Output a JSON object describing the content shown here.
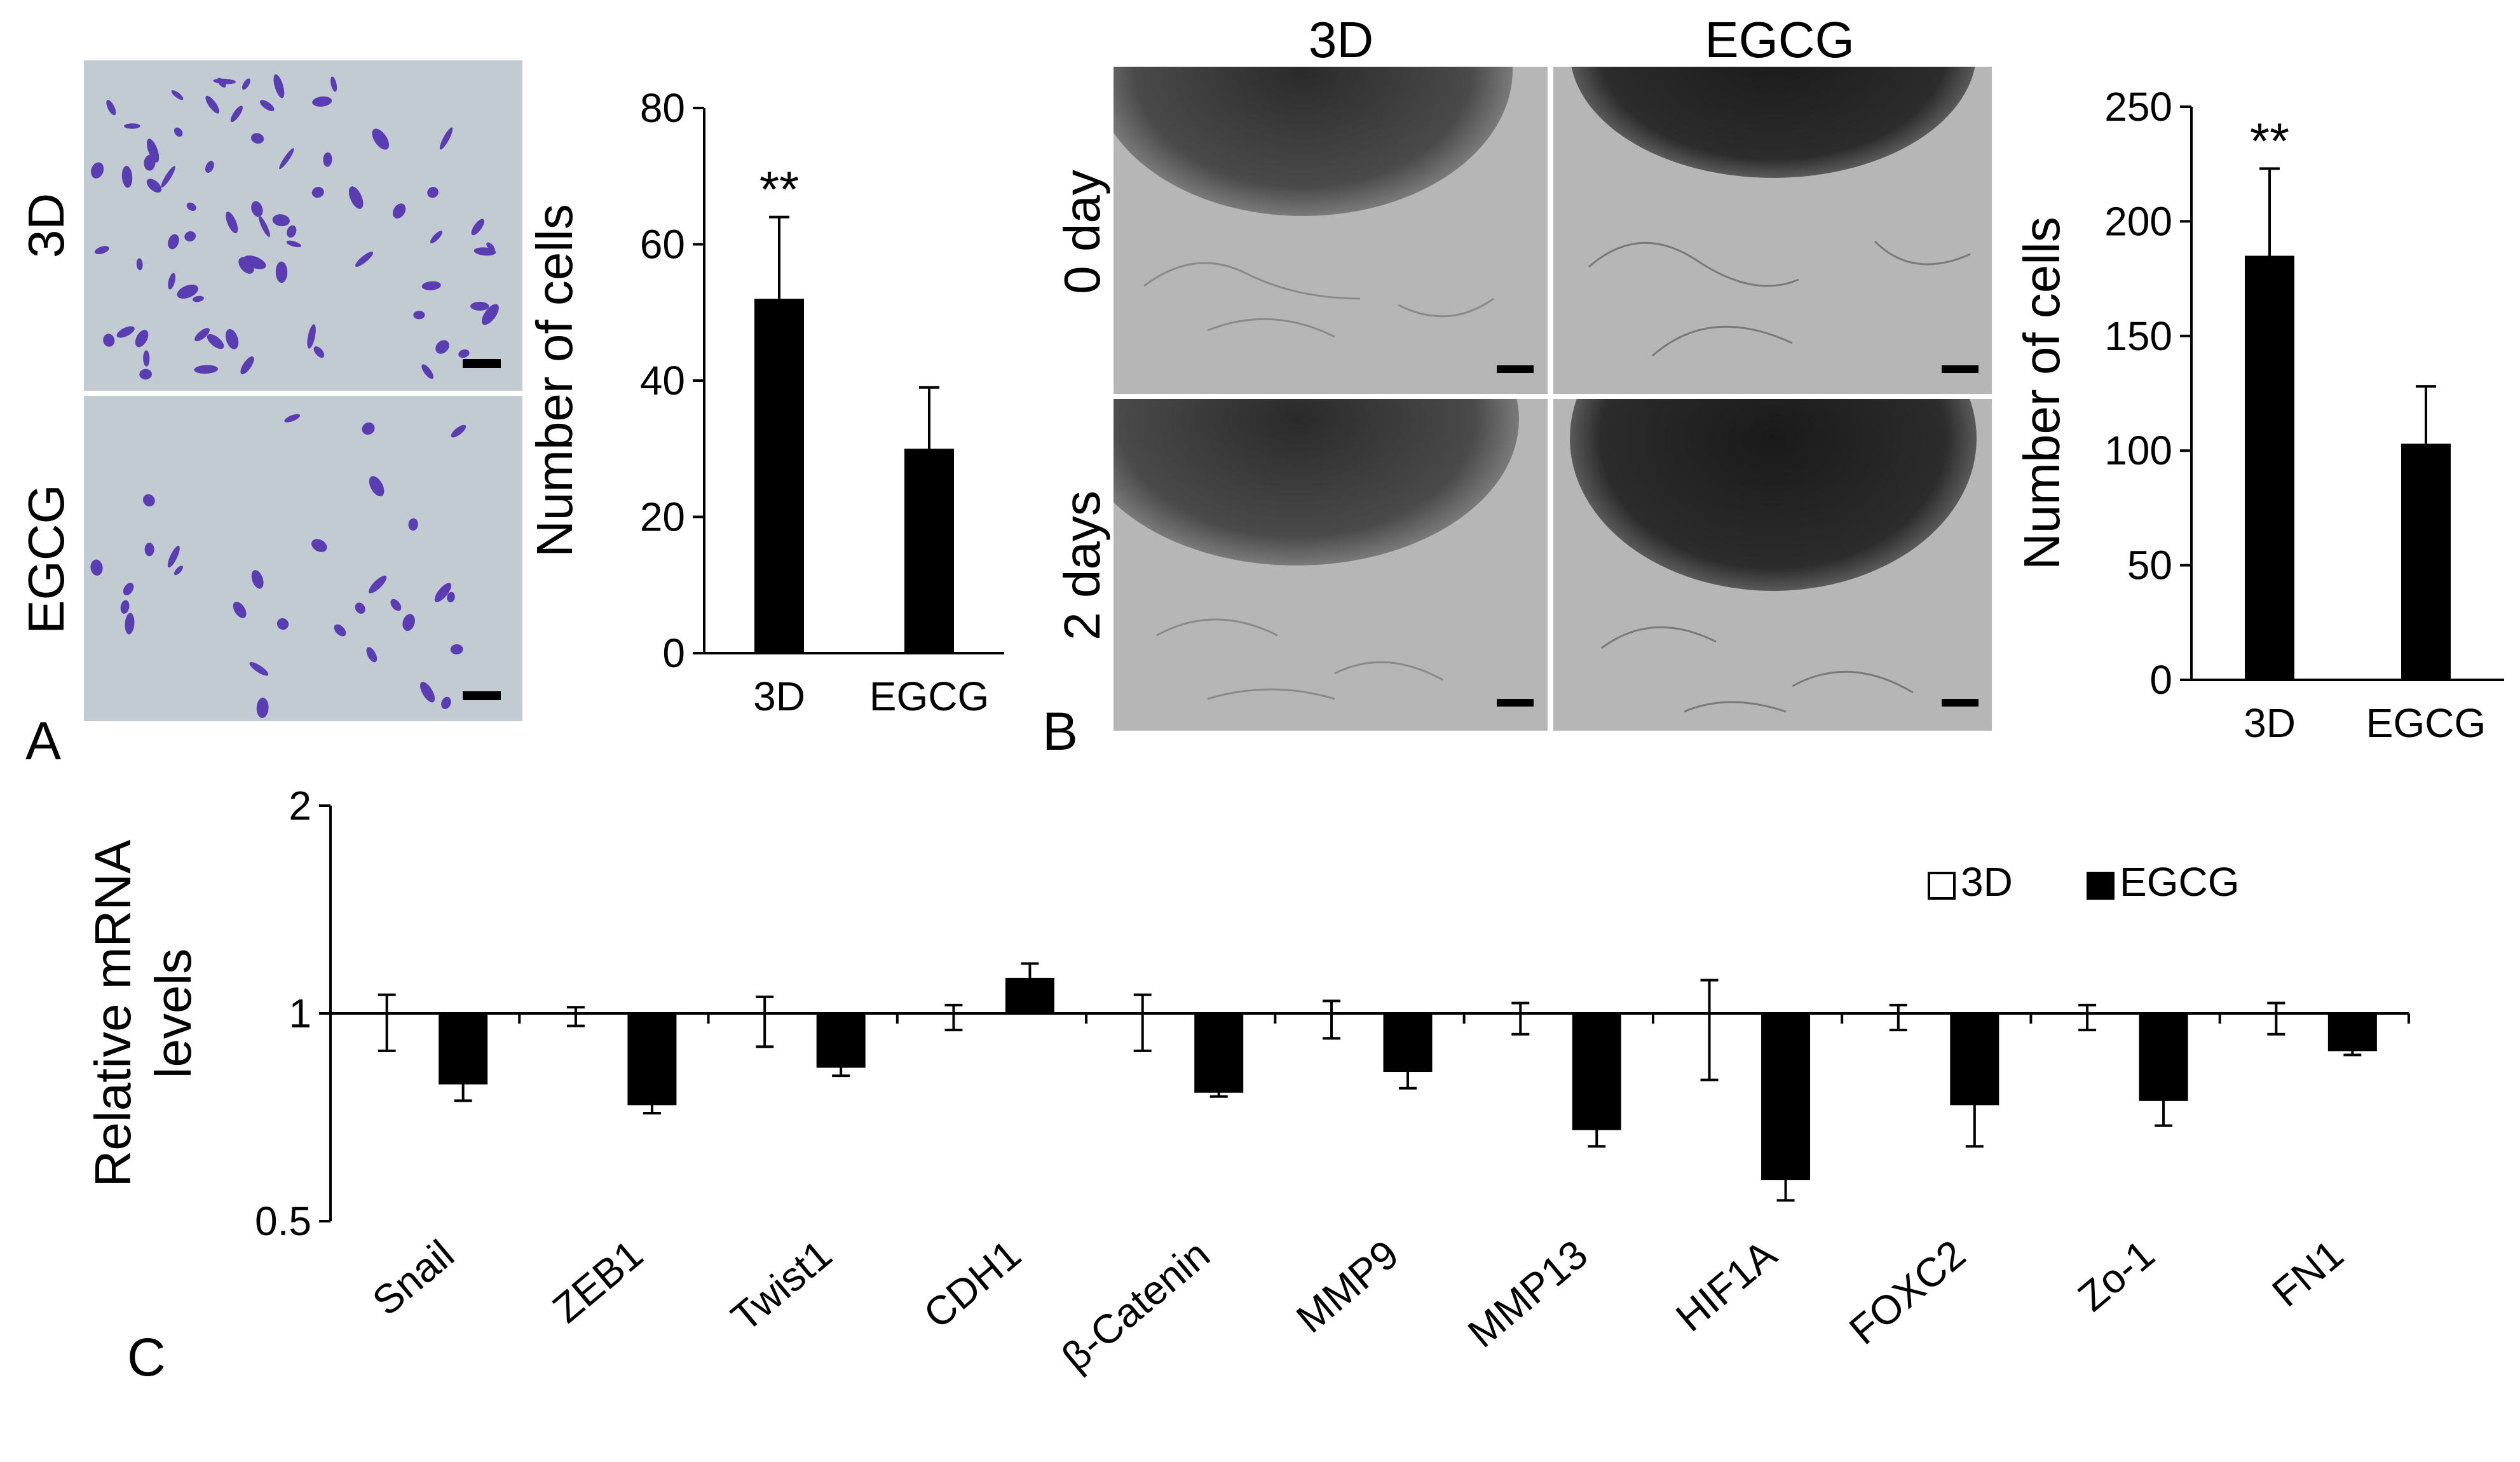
{
  "panel_letters": {
    "a": "A",
    "b": "B",
    "c": "C"
  },
  "panelA_images": {
    "row_labels": [
      "3D",
      "EGCG"
    ],
    "colors": {
      "background": "#c3cbd2",
      "cell": "#5b3db3"
    }
  },
  "panelB_images": {
    "col_labels": [
      "3D",
      "EGCG"
    ],
    "row_labels": [
      "0 day",
      "2 days"
    ],
    "colors": {
      "background": "#b6b6b6",
      "spheroid": "#3a3a3a"
    }
  },
  "chart_data": [
    {
      "id": "A",
      "type": "bar",
      "categories": [
        "3D",
        "EGCG"
      ],
      "values": [
        52,
        30
      ],
      "errors": [
        12,
        9
      ],
      "significance": [
        "**",
        ""
      ],
      "ylabel": "Number of cells",
      "ylim": [
        0,
        80
      ],
      "yticks": [
        0,
        20,
        40,
        60,
        80
      ],
      "color": "#000000"
    },
    {
      "id": "B",
      "type": "bar",
      "categories": [
        "3D",
        "EGCG"
      ],
      "values": [
        185,
        103
      ],
      "errors": [
        38,
        25
      ],
      "significance": [
        "**",
        ""
      ],
      "ylabel": "Number of cells",
      "ylim": [
        0,
        250
      ],
      "yticks": [
        0,
        50,
        100,
        150,
        200,
        250
      ],
      "color": "#000000"
    },
    {
      "id": "C",
      "type": "bar",
      "categories": [
        "Snail",
        "ZEB1",
        "Twist1",
        "CDH1",
        "β-Catenin",
        "MMP9",
        "MMP13",
        "HIF1A",
        "FOXC2",
        "Zo-1",
        "FN1"
      ],
      "baseline": 1,
      "series": [
        {
          "name": "3D",
          "values": [
            1,
            1,
            1,
            1,
            1,
            1,
            1,
            1,
            1,
            1,
            1
          ],
          "errors": [
            0.09,
            0.03,
            0.08,
            0.04,
            0.09,
            0.06,
            0.05,
            0.16,
            0.04,
            0.04,
            0.05
          ],
          "color": "#ffffff"
        },
        {
          "name": "EGCG",
          "values": [
            0.83,
            0.78,
            0.87,
            1.17,
            0.81,
            0.86,
            0.72,
            0.6,
            0.78,
            0.79,
            0.91
          ],
          "errors": [
            0.04,
            0.02,
            0.02,
            0.07,
            0.01,
            0.04,
            0.04,
            0.05,
            0.1,
            0.06,
            0.01
          ],
          "color": "#000000"
        }
      ],
      "ylabel_lines": [
        "Relative  mRNA",
        "levels"
      ],
      "ylim": [
        0.5,
        2
      ],
      "yticks": [
        0.5,
        1,
        2
      ],
      "legend_position": "top-right"
    }
  ]
}
